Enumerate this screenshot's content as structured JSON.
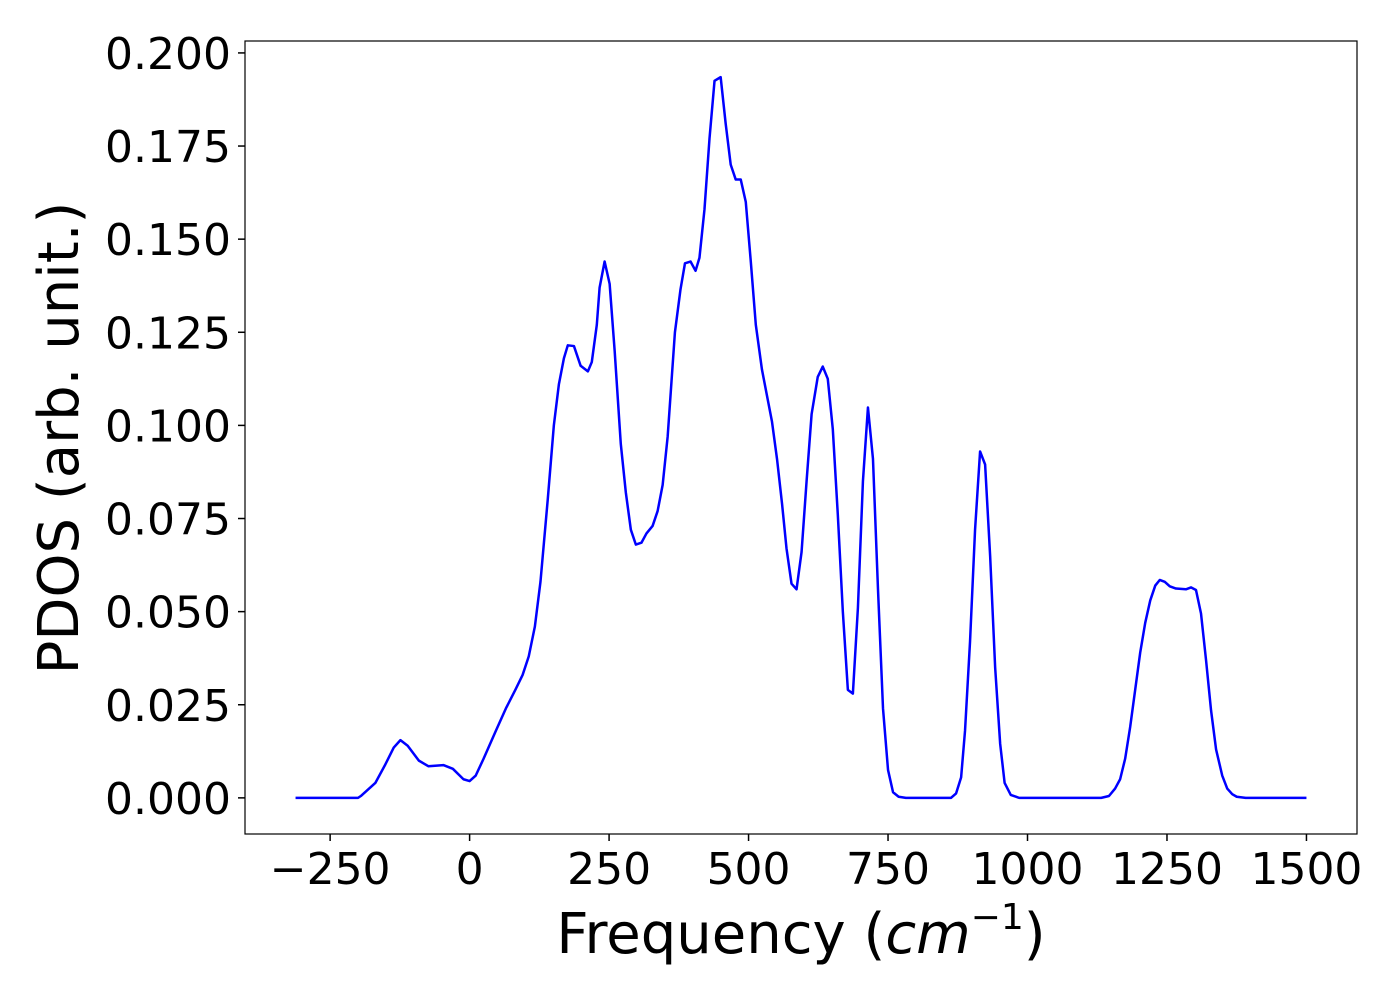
{
  "chart_data": {
    "type": "line",
    "xlabel_parts": [
      "Frequency (",
      "cm",
      "−1",
      ")"
    ],
    "ylabel": "PDOS (arb. unit.)",
    "xlim": [
      -402.6,
      1590.6
    ],
    "ylim": [
      -0.0097,
      0.2032
    ],
    "xticks": [
      {
        "value": -250,
        "label": "−250"
      },
      0,
      250,
      500,
      750,
      1000,
      1250,
      1500
    ],
    "yticks": [
      {
        "value": 0,
        "label": "0.000"
      },
      0.025,
      {
        "value": 0.05,
        "label": "0.050"
      },
      0.075,
      {
        "value": 0.1,
        "label": "0.100"
      },
      0.125,
      {
        "value": 0.15,
        "label": "0.150"
      },
      0.175,
      {
        "value": 0.2,
        "label": "0.200"
      }
    ],
    "x": [
      -312,
      -200,
      -195,
      -169,
      -151,
      -136,
      -124,
      -111,
      -91,
      -74,
      -47,
      -30,
      -11,
      0,
      11,
      25,
      47,
      65,
      82,
      95,
      106,
      117,
      127,
      140,
      151,
      160,
      169,
      176,
      187,
      199,
      212,
      219,
      228,
      233,
      242,
      251,
      260,
      271,
      280,
      289,
      298,
      308,
      317,
      328,
      337,
      346,
      355,
      368,
      378,
      386,
      396,
      405,
      412,
      421,
      430,
      439,
      450,
      459,
      468,
      477,
      486,
      495,
      504,
      513,
      524,
      533,
      542,
      551,
      560,
      568,
      577,
      586,
      595,
      604,
      613,
      624,
      633,
      642,
      651,
      660,
      669,
      678,
      687,
      696,
      705,
      714,
      723,
      732,
      741,
      750,
      759,
      769,
      782,
      863,
      872,
      881,
      888,
      897,
      906,
      915,
      924,
      933,
      942,
      951,
      959,
      970,
      985,
      1132,
      1146,
      1157,
      1166,
      1175,
      1184,
      1193,
      1202,
      1211,
      1220,
      1229,
      1237,
      1246,
      1255,
      1266,
      1284,
      1293,
      1302,
      1311,
      1320,
      1329,
      1338,
      1349,
      1358,
      1367,
      1375,
      1391,
      1500
    ],
    "series": [
      {
        "color": "#0000ff",
        "values": [
          0,
          0,
          0.0005,
          0.004,
          0.009,
          0.0135,
          0.0155,
          0.014,
          0.01,
          0.0085,
          0.0088,
          0.0078,
          0.005,
          0.0045,
          0.006,
          0.0105,
          0.018,
          0.024,
          0.029,
          0.033,
          0.038,
          0.046,
          0.058,
          0.08,
          0.1,
          0.111,
          0.118,
          0.1215,
          0.1213,
          0.116,
          0.1145,
          0.117,
          0.127,
          0.137,
          0.144,
          0.138,
          0.12,
          0.095,
          0.082,
          0.072,
          0.068,
          0.0685,
          0.071,
          0.073,
          0.077,
          0.084,
          0.097,
          0.125,
          0.1365,
          0.1435,
          0.144,
          0.1415,
          0.145,
          0.158,
          0.177,
          0.1925,
          0.1935,
          0.181,
          0.17,
          0.166,
          0.166,
          0.16,
          0.144,
          0.127,
          0.115,
          0.108,
          0.101,
          0.091,
          0.079,
          0.067,
          0.0575,
          0.056,
          0.066,
          0.085,
          0.103,
          0.113,
          0.1158,
          0.1125,
          0.099,
          0.076,
          0.05,
          0.029,
          0.028,
          0.051,
          0.085,
          0.1048,
          0.091,
          0.056,
          0.024,
          0.0075,
          0.0015,
          0.0003,
          0,
          0,
          0.0012,
          0.0055,
          0.018,
          0.042,
          0.072,
          0.093,
          0.0895,
          0.065,
          0.035,
          0.0145,
          0.004,
          0.0008,
          0,
          0,
          0.0005,
          0.0025,
          0.005,
          0.0105,
          0.019,
          0.029,
          0.039,
          0.047,
          0.053,
          0.057,
          0.0585,
          0.058,
          0.0568,
          0.0562,
          0.056,
          0.0565,
          0.0558,
          0.0495,
          0.037,
          0.0235,
          0.013,
          0.006,
          0.0025,
          0.001,
          0.0003,
          0,
          0
        ]
      }
    ]
  }
}
